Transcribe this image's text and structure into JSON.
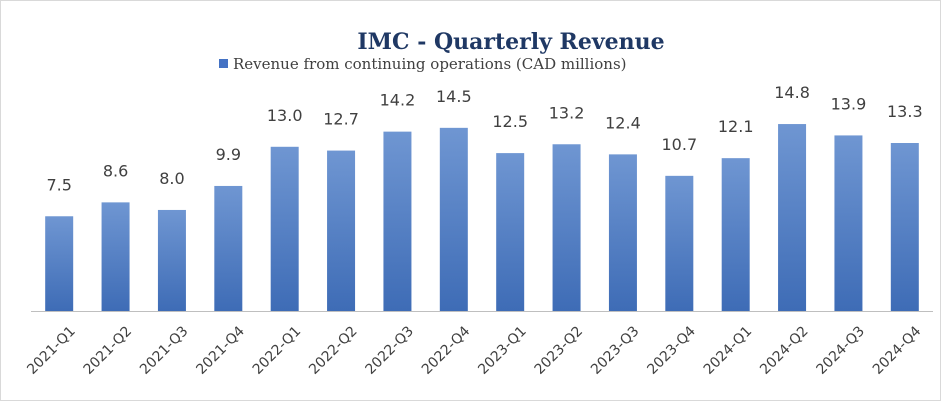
{
  "chart_data": {
    "type": "bar",
    "title": "IMC - Quarterly Revenue",
    "categories": [
      "2021-Q1",
      "2021-Q2",
      "2021-Q3",
      "2021-Q4",
      "2022-Q1",
      "2022-Q2",
      "2022-Q3",
      "2022-Q4",
      "2023-Q1",
      "2023-Q2",
      "2023-Q3",
      "2023-Q4",
      "2024-Q1",
      "2024-Q2",
      "2024-Q3",
      "2024-Q4"
    ],
    "series": [
      {
        "name": "Revenue from continuing operations (CAD millions)",
        "values": [
          7.5,
          8.6,
          8.0,
          9.9,
          13.0,
          12.7,
          14.2,
          14.5,
          12.5,
          13.2,
          12.4,
          10.7,
          12.1,
          14.8,
          13.9,
          13.3
        ],
        "labels": [
          "7.5",
          "8.6",
          "8.0",
          "9.9",
          "13.0",
          "12.7",
          "14.2",
          "14.5",
          "12.5",
          "13.2",
          "12.4",
          "10.7",
          "12.1",
          "14.8",
          "13.9",
          "13.3"
        ]
      }
    ],
    "xlabel": "",
    "ylabel": "",
    "ylim": [
      0,
      15.2
    ],
    "grid": false,
    "legend": "top-center",
    "colors": {
      "bar_top": "#6f96d2",
      "bar_bottom": "#3e6cb6",
      "title": "#1f3864"
    }
  }
}
